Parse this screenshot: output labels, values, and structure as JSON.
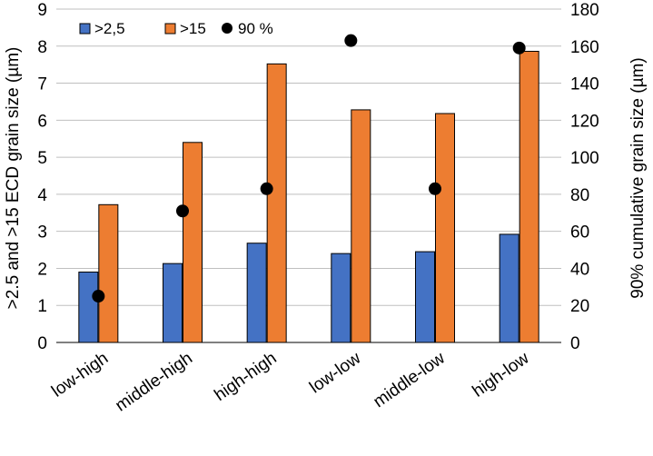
{
  "chart_data": {
    "type": "bar",
    "categories": [
      "low-high",
      "middle-high",
      "high-high",
      "low-low",
      "middle-low",
      "high-low"
    ],
    "series": [
      {
        "name": ">2,5",
        "axis": "left",
        "mark": "bar",
        "color": "#4472C4",
        "values": [
          1.9,
          2.13,
          2.68,
          2.4,
          2.45,
          2.92
        ]
      },
      {
        "name": ">15",
        "axis": "left",
        "mark": "bar",
        "color": "#ED7D31",
        "values": [
          3.72,
          5.4,
          7.52,
          6.28,
          6.18,
          7.86
        ]
      },
      {
        "name": "90 %",
        "axis": "right",
        "mark": "point",
        "color": "#000000",
        "values": [
          25,
          71,
          83,
          163,
          83,
          159
        ]
      }
    ],
    "ylabel": ">2.5 and >15 ECD grain size (µm)",
    "y2label": "90% cumulative grain size (µm)",
    "ylim": [
      0,
      9
    ],
    "y2lim": [
      0,
      180
    ],
    "yticks": [
      "0",
      "1",
      "2",
      "3",
      "4",
      "5",
      "6",
      "7",
      "8",
      "9"
    ],
    "y2ticks": [
      "0",
      "20",
      "40",
      "60",
      "80",
      "100",
      "120",
      "140",
      "160",
      "180"
    ],
    "grid": true,
    "legend": "top-left"
  }
}
